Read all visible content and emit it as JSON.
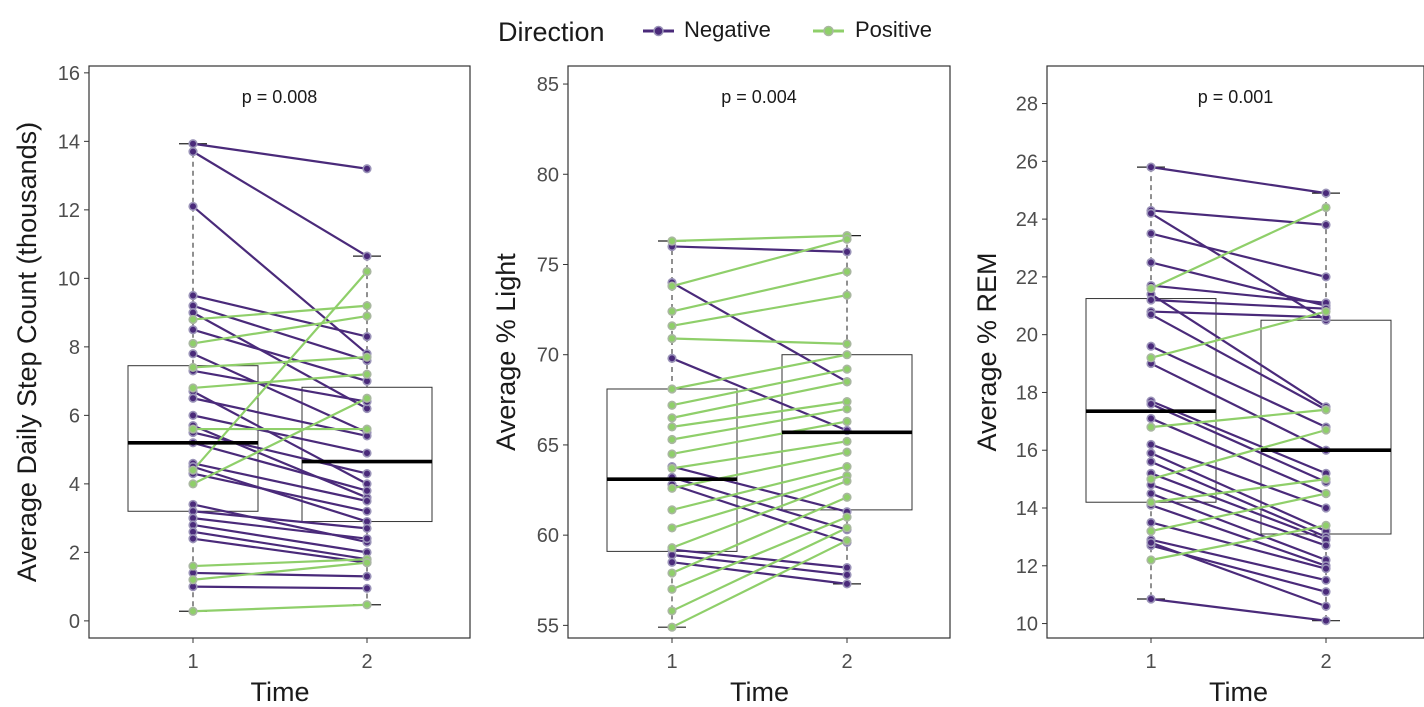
{
  "legend": {
    "title": "Direction",
    "items": [
      {
        "label": "Negative",
        "color": "#4a2a7a"
      },
      {
        "label": "Positive",
        "color": "#8fcf6a"
      }
    ]
  },
  "chart_data": [
    {
      "type": "line",
      "xlabel": "Time",
      "ylabel": "Average Daily Step Count (thousands)",
      "categories": [
        "1",
        "2"
      ],
      "yticks": [
        0,
        2,
        4,
        6,
        8,
        10,
        12,
        14,
        16
      ],
      "ylim": [
        -0.5,
        16.2
      ],
      "annotation": "p = 0.008",
      "boxplot": {
        "t1": {
          "min": 0.28,
          "q1": 3.2,
          "median": 5.2,
          "q3": 7.45,
          "max": 13.93
        },
        "t2": {
          "min": 0.47,
          "q1": 2.9,
          "median": 4.65,
          "q3": 6.82,
          "max": 10.65
        }
      },
      "series": [
        {
          "direction": "Negative",
          "values": [
            13.93,
            13.2
          ]
        },
        {
          "direction": "Negative",
          "values": [
            13.7,
            10.65
          ]
        },
        {
          "direction": "Negative",
          "values": [
            12.1,
            7.8
          ]
        },
        {
          "direction": "Negative",
          "values": [
            9.5,
            8.3
          ]
        },
        {
          "direction": "Negative",
          "values": [
            9.2,
            7.6
          ]
        },
        {
          "direction": "Negative",
          "values": [
            9.0,
            6.2
          ]
        },
        {
          "direction": "Negative",
          "values": [
            8.5,
            7.0
          ]
        },
        {
          "direction": "Negative",
          "values": [
            7.8,
            5.5
          ]
        },
        {
          "direction": "Negative",
          "values": [
            7.3,
            6.4
          ]
        },
        {
          "direction": "Negative",
          "values": [
            6.7,
            4.0
          ]
        },
        {
          "direction": "Negative",
          "values": [
            6.5,
            5.4
          ]
        },
        {
          "direction": "Negative",
          "values": [
            6.0,
            4.9
          ]
        },
        {
          "direction": "Negative",
          "values": [
            5.7,
            3.6
          ]
        },
        {
          "direction": "Negative",
          "values": [
            5.5,
            4.3
          ]
        },
        {
          "direction": "Negative",
          "values": [
            5.2,
            3.8
          ]
        },
        {
          "direction": "Negative",
          "values": [
            4.6,
            3.5
          ]
        },
        {
          "direction": "Negative",
          "values": [
            4.5,
            2.9
          ]
        },
        {
          "direction": "Negative",
          "values": [
            4.3,
            3.2
          ]
        },
        {
          "direction": "Negative",
          "values": [
            3.4,
            2.3
          ]
        },
        {
          "direction": "Negative",
          "values": [
            3.2,
            2.7
          ]
        },
        {
          "direction": "Negative",
          "values": [
            3.0,
            2.4
          ]
        },
        {
          "direction": "Negative",
          "values": [
            2.8,
            2.0
          ]
        },
        {
          "direction": "Negative",
          "values": [
            2.6,
            1.8
          ]
        },
        {
          "direction": "Negative",
          "values": [
            2.4,
            1.7
          ]
        },
        {
          "direction": "Negative",
          "values": [
            1.4,
            1.3
          ]
        },
        {
          "direction": "Negative",
          "values": [
            1.0,
            0.95
          ]
        },
        {
          "direction": "Positive",
          "values": [
            8.8,
            9.2
          ]
        },
        {
          "direction": "Positive",
          "values": [
            8.1,
            8.9
          ]
        },
        {
          "direction": "Positive",
          "values": [
            7.4,
            7.7
          ]
        },
        {
          "direction": "Positive",
          "values": [
            6.8,
            7.2
          ]
        },
        {
          "direction": "Positive",
          "values": [
            4.4,
            10.2
          ]
        },
        {
          "direction": "Positive",
          "values": [
            4.0,
            6.5
          ]
        },
        {
          "direction": "Positive",
          "values": [
            5.6,
            5.6
          ]
        },
        {
          "direction": "Positive",
          "values": [
            1.6,
            1.8
          ]
        },
        {
          "direction": "Positive",
          "values": [
            1.2,
            1.7
          ]
        },
        {
          "direction": "Positive",
          "values": [
            0.28,
            0.47
          ]
        }
      ]
    },
    {
      "type": "line",
      "xlabel": "Time",
      "ylabel": "Average % Light",
      "categories": [
        "1",
        "2"
      ],
      "yticks": [
        55,
        60,
        65,
        70,
        75,
        80,
        85
      ],
      "ylim": [
        54.3,
        86.0
      ],
      "annotation": "p = 0.004",
      "boxplot": {
        "t1": {
          "min": 54.9,
          "q1": 59.1,
          "median": 63.1,
          "q3": 68.1,
          "max": 76.3
        },
        "t2": {
          "min": 57.3,
          "q1": 61.4,
          "median": 65.7,
          "q3": 70.0,
          "max": 76.6
        }
      },
      "series": [
        {
          "direction": "Negative",
          "values": [
            76.0,
            75.7
          ]
        },
        {
          "direction": "Negative",
          "values": [
            74.0,
            68.5
          ]
        },
        {
          "direction": "Negative",
          "values": [
            69.8,
            65.8
          ]
        },
        {
          "direction": "Negative",
          "values": [
            63.8,
            61.3
          ]
        },
        {
          "direction": "Negative",
          "values": [
            63.2,
            60.3
          ]
        },
        {
          "direction": "Negative",
          "values": [
            62.8,
            59.6
          ]
        },
        {
          "direction": "Negative",
          "values": [
            59.2,
            58.2
          ]
        },
        {
          "direction": "Negative",
          "values": [
            58.9,
            57.8
          ]
        },
        {
          "direction": "Negative",
          "values": [
            58.5,
            57.3
          ]
        },
        {
          "direction": "Positive",
          "values": [
            76.3,
            76.6
          ]
        },
        {
          "direction": "Positive",
          "values": [
            73.8,
            76.4
          ]
        },
        {
          "direction": "Positive",
          "values": [
            72.4,
            74.6
          ]
        },
        {
          "direction": "Positive",
          "values": [
            71.6,
            73.3
          ]
        },
        {
          "direction": "Positive",
          "values": [
            70.9,
            70.6
          ]
        },
        {
          "direction": "Positive",
          "values": [
            68.1,
            70.0
          ]
        },
        {
          "direction": "Positive",
          "values": [
            67.2,
            69.2
          ]
        },
        {
          "direction": "Positive",
          "values": [
            66.5,
            68.5
          ]
        },
        {
          "direction": "Positive",
          "values": [
            66.0,
            67.4
          ]
        },
        {
          "direction": "Positive",
          "values": [
            65.3,
            67.0
          ]
        },
        {
          "direction": "Positive",
          "values": [
            64.5,
            66.3
          ]
        },
        {
          "direction": "Positive",
          "values": [
            63.7,
            65.2
          ]
        },
        {
          "direction": "Positive",
          "values": [
            62.6,
            64.6
          ]
        },
        {
          "direction": "Positive",
          "values": [
            61.4,
            63.8
          ]
        },
        {
          "direction": "Positive",
          "values": [
            60.4,
            63.3
          ]
        },
        {
          "direction": "Positive",
          "values": [
            59.3,
            63.0
          ]
        },
        {
          "direction": "Positive",
          "values": [
            57.9,
            62.1
          ]
        },
        {
          "direction": "Positive",
          "values": [
            57.0,
            61.0
          ]
        },
        {
          "direction": "Positive",
          "values": [
            55.8,
            60.4
          ]
        },
        {
          "direction": "Positive",
          "values": [
            54.9,
            59.7
          ]
        }
      ]
    },
    {
      "type": "line",
      "xlabel": "Time",
      "ylabel": "Average % REM",
      "categories": [
        "1",
        "2"
      ],
      "yticks": [
        10,
        12,
        14,
        16,
        18,
        20,
        22,
        24,
        26,
        28
      ],
      "ylim": [
        9.5,
        29.3
      ],
      "annotation": "p = 0.001",
      "boxplot": {
        "t1": {
          "min": 10.85,
          "q1": 14.2,
          "median": 17.35,
          "q3": 21.25,
          "max": 25.8
        },
        "t2": {
          "min": 10.1,
          "q1": 13.1,
          "median": 16.0,
          "q3": 20.5,
          "max": 24.9
        }
      },
      "series": [
        {
          "direction": "Negative",
          "values": [
            25.8,
            24.9
          ]
        },
        {
          "direction": "Negative",
          "values": [
            24.3,
            23.8
          ]
        },
        {
          "direction": "Negative",
          "values": [
            24.2,
            20.5
          ]
        },
        {
          "direction": "Negative",
          "values": [
            23.5,
            22.0
          ]
        },
        {
          "direction": "Negative",
          "values": [
            22.5,
            21.0
          ]
        },
        {
          "direction": "Negative",
          "values": [
            21.7,
            21.1
          ]
        },
        {
          "direction": "Negative",
          "values": [
            21.4,
            17.5
          ]
        },
        {
          "direction": "Negative",
          "values": [
            21.2,
            20.9
          ]
        },
        {
          "direction": "Negative",
          "values": [
            20.8,
            20.6
          ]
        },
        {
          "direction": "Negative",
          "values": [
            20.7,
            17.4
          ]
        },
        {
          "direction": "Negative",
          "values": [
            19.6,
            16.8
          ]
        },
        {
          "direction": "Negative",
          "values": [
            19.0,
            16.0
          ]
        },
        {
          "direction": "Negative",
          "values": [
            17.7,
            15.2
          ]
        },
        {
          "direction": "Negative",
          "values": [
            17.6,
            14.9
          ]
        },
        {
          "direction": "Negative",
          "values": [
            17.1,
            14.5
          ]
        },
        {
          "direction": "Negative",
          "values": [
            16.2,
            14.0
          ]
        },
        {
          "direction": "Negative",
          "values": [
            15.9,
            13.2
          ]
        },
        {
          "direction": "Negative",
          "values": [
            15.6,
            13.0
          ]
        },
        {
          "direction": "Negative",
          "values": [
            15.2,
            12.9
          ]
        },
        {
          "direction": "Negative",
          "values": [
            14.8,
            12.7
          ]
        },
        {
          "direction": "Negative",
          "values": [
            14.5,
            12.2
          ]
        },
        {
          "direction": "Negative",
          "values": [
            14.1,
            12.0
          ]
        },
        {
          "direction": "Negative",
          "values": [
            13.5,
            11.9
          ]
        },
        {
          "direction": "Negative",
          "values": [
            12.9,
            11.5
          ]
        },
        {
          "direction": "Negative",
          "values": [
            12.7,
            11.1
          ]
        },
        {
          "direction": "Negative",
          "values": [
            12.8,
            10.6
          ]
        },
        {
          "direction": "Negative",
          "values": [
            10.85,
            10.1
          ]
        },
        {
          "direction": "Positive",
          "values": [
            21.6,
            24.4
          ]
        },
        {
          "direction": "Positive",
          "values": [
            19.2,
            20.8
          ]
        },
        {
          "direction": "Positive",
          "values": [
            16.8,
            17.4
          ]
        },
        {
          "direction": "Positive",
          "values": [
            15.0,
            16.7
          ]
        },
        {
          "direction": "Positive",
          "values": [
            14.2,
            15.0
          ]
        },
        {
          "direction": "Positive",
          "values": [
            13.2,
            14.5
          ]
        },
        {
          "direction": "Positive",
          "values": [
            12.2,
            13.4
          ]
        }
      ]
    }
  ]
}
